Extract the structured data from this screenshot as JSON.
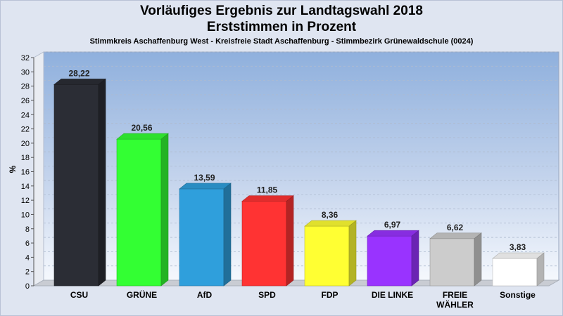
{
  "header": {
    "title_line1": "Vorläufiges Ergebnis zur Landtagswahl 2018",
    "title_line2": "Erststimmen in Prozent",
    "subtitle": "Stimmkreis Aschaffenburg West - Kreisfreie Stadt Aschaffenburg - Stimmbezirk Grünewaldschule (0024)"
  },
  "chart_data": {
    "type": "bar",
    "title": "Vorläufiges Ergebnis zur Landtagswahl 2018 Erststimmen in Prozent",
    "subtitle": "Stimmkreis Aschaffenburg West - Kreisfreie Stadt Aschaffenburg - Stimmbezirk Grünewaldschule (0024)",
    "ylabel": "%",
    "ylim": [
      0,
      32
    ],
    "yticks": [
      0,
      2,
      4,
      6,
      8,
      10,
      12,
      14,
      16,
      18,
      20,
      22,
      24,
      26,
      28,
      30,
      32
    ],
    "grid": true,
    "categories": [
      "CSU",
      "GRÜNE",
      "AfD",
      "SPD",
      "FDP",
      "DIE LINKE",
      "FREIE WÄHLER",
      "Sonstige"
    ],
    "category_lines": [
      [
        "CSU"
      ],
      [
        "GRÜNE"
      ],
      [
        "AfD"
      ],
      [
        "SPD"
      ],
      [
        "FDP"
      ],
      [
        "DIE LINKE"
      ],
      [
        "FREIE",
        "WÄHLER"
      ],
      [
        "Sonstige"
      ]
    ],
    "values": [
      28.22,
      20.56,
      13.59,
      11.85,
      8.36,
      6.97,
      6.62,
      3.83
    ],
    "value_labels": [
      "28,22",
      "20,56",
      "13,59",
      "11,85",
      "8,36",
      "6,97",
      "6,62",
      "3,83"
    ],
    "colors": [
      "#2b2d35",
      "#33ff33",
      "#2f9fdc",
      "#ff3333",
      "#ffff33",
      "#9933ff",
      "#cccccc",
      "#ffffff"
    ]
  }
}
